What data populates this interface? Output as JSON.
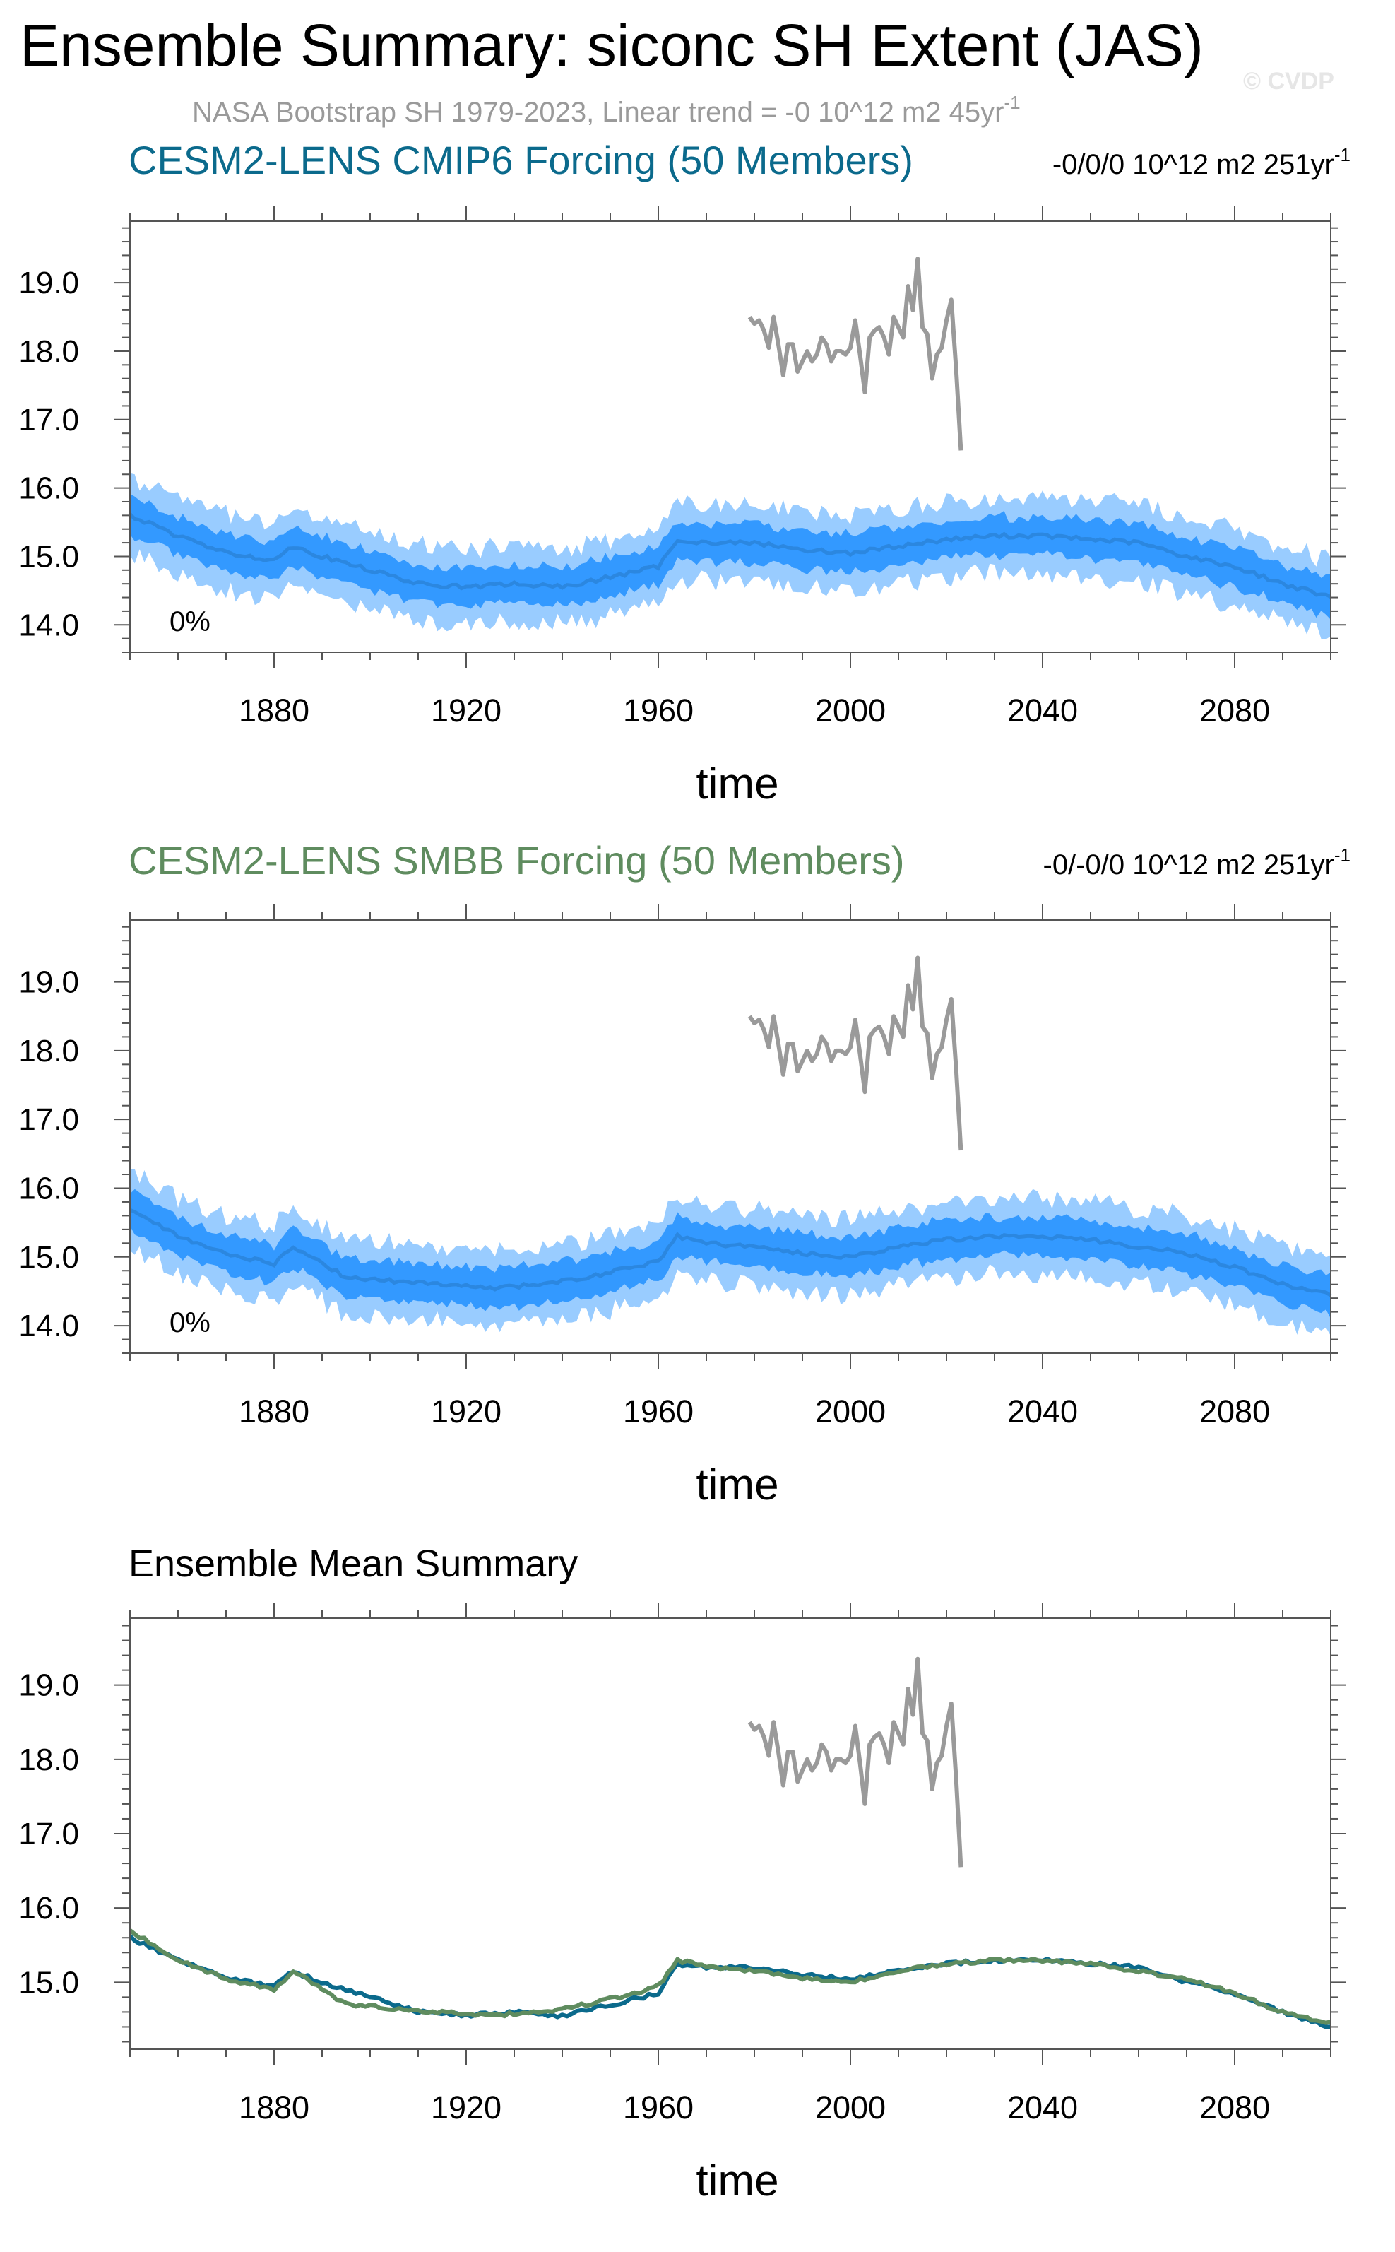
{
  "figure": {
    "title": "Ensemble Summary: siconc SH Extent (JAS)",
    "subtitle_main": "NASA Bootstrap SH 1979-2023, Linear trend = -0 10^12 m2 45yr",
    "subtitle_sup": "-1",
    "copyright": "© CVDP",
    "colors": {
      "obs": "#9a9a9a",
      "band_outer": "#99ccff",
      "band_inner": "#3399ff",
      "mean_line": "#2b87e0",
      "cmip6": "#0b6a8c",
      "smbb": "#5f8c5f"
    }
  },
  "chart_data": [
    {
      "type": "area",
      "title": "CESM2-LENS CMIP6 Forcing (50 Members)",
      "trend_main": "-0/0/0 10^12 m2 251yr",
      "trend_sup": "-1",
      "percent_label": "0%",
      "xlabel": "time",
      "ylabel": "",
      "xlim": [
        1850,
        2100
      ],
      "ylim": [
        13.6,
        19.9
      ],
      "xticks": [
        "1880",
        "1920",
        "1960",
        "2000",
        "2040",
        "2080"
      ],
      "yticks": [
        "14.0",
        "15.0",
        "16.0",
        "17.0",
        "18.0",
        "19.0"
      ],
      "ensemble_anchors": {
        "year": [
          1850,
          1860,
          1870,
          1880,
          1884,
          1890,
          1900,
          1910,
          1920,
          1930,
          1940,
          1950,
          1960,
          1964,
          1970,
          1980,
          1990,
          2000,
          2010,
          2020,
          2030,
          2040,
          2050,
          2060,
          2070,
          2080,
          2090,
          2100
        ],
        "mean": [
          15.6,
          15.3,
          15.05,
          14.95,
          15.15,
          15.0,
          14.8,
          14.6,
          14.55,
          14.6,
          14.55,
          14.7,
          14.85,
          15.25,
          15.2,
          15.2,
          15.1,
          15.05,
          15.15,
          15.25,
          15.3,
          15.3,
          15.25,
          15.2,
          15.0,
          14.85,
          14.6,
          14.4
        ],
        "inner_half_width": 0.28,
        "outer_half_width": 0.55
      },
      "observations": {
        "label": "NASA Bootstrap SH 1979-2023",
        "years": [
          1979,
          1980,
          1981,
          1982,
          1983,
          1984,
          1985,
          1986,
          1987,
          1988,
          1989,
          1990,
          1991,
          1992,
          1993,
          1994,
          1995,
          1996,
          1997,
          1998,
          1999,
          2000,
          2001,
          2002,
          2003,
          2004,
          2005,
          2006,
          2007,
          2008,
          2009,
          2010,
          2011,
          2012,
          2013,
          2014,
          2015,
          2016,
          2017,
          2018,
          2019,
          2020,
          2021,
          2022,
          2023
        ],
        "values": [
          18.5,
          18.4,
          18.45,
          18.3,
          18.05,
          18.5,
          18.1,
          17.65,
          18.1,
          18.1,
          17.7,
          17.85,
          18.0,
          17.85,
          17.95,
          18.2,
          18.1,
          17.85,
          18.0,
          18.0,
          17.95,
          18.05,
          18.45,
          17.95,
          17.4,
          18.2,
          18.3,
          18.35,
          18.2,
          17.95,
          18.5,
          18.35,
          18.2,
          18.95,
          18.6,
          19.35,
          18.35,
          18.25,
          17.6,
          17.95,
          18.05,
          18.45,
          18.75,
          17.75,
          16.55
        ]
      }
    },
    {
      "type": "area",
      "title": "CESM2-LENS SMBB Forcing (50 Members)",
      "trend_main": "-0/-0/0 10^12 m2 251yr",
      "trend_sup": "-1",
      "percent_label": "0%",
      "xlabel": "time",
      "ylabel": "",
      "xlim": [
        1850,
        2100
      ],
      "ylim": [
        13.6,
        19.9
      ],
      "xticks": [
        "1880",
        "1920",
        "1960",
        "2000",
        "2040",
        "2080"
      ],
      "yticks": [
        "14.0",
        "15.0",
        "16.0",
        "17.0",
        "18.0",
        "19.0"
      ],
      "ensemble_anchors": {
        "year": [
          1850,
          1860,
          1870,
          1880,
          1884,
          1888,
          1895,
          1905,
          1915,
          1925,
          1935,
          1945,
          1955,
          1960,
          1964,
          1970,
          1980,
          1990,
          2000,
          2010,
          2020,
          2030,
          2040,
          2050,
          2060,
          2070,
          2080,
          2090,
          2100
        ],
        "mean": [
          15.7,
          15.3,
          15.05,
          14.9,
          15.15,
          15.0,
          14.7,
          14.65,
          14.6,
          14.55,
          14.6,
          14.7,
          14.85,
          14.95,
          15.3,
          15.2,
          15.15,
          15.05,
          15.0,
          15.15,
          15.25,
          15.3,
          15.3,
          15.25,
          15.15,
          15.05,
          14.85,
          14.6,
          14.45
        ],
        "inner_half_width": 0.28,
        "outer_half_width": 0.55
      },
      "observations": {
        "label": "NASA Bootstrap SH 1979-2023",
        "years": [
          1979,
          1980,
          1981,
          1982,
          1983,
          1984,
          1985,
          1986,
          1987,
          1988,
          1989,
          1990,
          1991,
          1992,
          1993,
          1994,
          1995,
          1996,
          1997,
          1998,
          1999,
          2000,
          2001,
          2002,
          2003,
          2004,
          2005,
          2006,
          2007,
          2008,
          2009,
          2010,
          2011,
          2012,
          2013,
          2014,
          2015,
          2016,
          2017,
          2018,
          2019,
          2020,
          2021,
          2022,
          2023
        ],
        "values": [
          18.5,
          18.4,
          18.45,
          18.3,
          18.05,
          18.5,
          18.1,
          17.65,
          18.1,
          18.1,
          17.7,
          17.85,
          18.0,
          17.85,
          17.95,
          18.2,
          18.1,
          17.85,
          18.0,
          18.0,
          17.95,
          18.05,
          18.45,
          17.95,
          17.4,
          18.2,
          18.3,
          18.35,
          18.2,
          17.95,
          18.5,
          18.35,
          18.2,
          18.95,
          18.6,
          19.35,
          18.35,
          18.25,
          17.6,
          17.95,
          18.05,
          18.45,
          18.75,
          17.75,
          16.55
        ]
      }
    },
    {
      "type": "line",
      "title": "Ensemble Mean Summary",
      "xlabel": "time",
      "ylabel": "",
      "xlim": [
        1850,
        2100
      ],
      "ylim": [
        14.1,
        19.9
      ],
      "xticks": [
        "1880",
        "1920",
        "1960",
        "2000",
        "2040",
        "2080"
      ],
      "yticks": [
        "15.0",
        "16.0",
        "17.0",
        "18.0",
        "19.0"
      ],
      "series": [
        {
          "name": "CESM2-LENS CMIP6 Forcing (50 Members)",
          "year": [
            1850,
            1860,
            1870,
            1880,
            1884,
            1890,
            1900,
            1910,
            1920,
            1930,
            1940,
            1950,
            1960,
            1964,
            1970,
            1980,
            1990,
            2000,
            2010,
            2020,
            2030,
            2040,
            2050,
            2060,
            2070,
            2080,
            2090,
            2100
          ],
          "values": [
            15.6,
            15.3,
            15.05,
            14.95,
            15.15,
            15.0,
            14.8,
            14.6,
            14.55,
            14.6,
            14.55,
            14.7,
            14.85,
            15.25,
            15.2,
            15.2,
            15.1,
            15.05,
            15.15,
            15.25,
            15.3,
            15.3,
            15.25,
            15.2,
            15.0,
            14.85,
            14.6,
            14.4
          ]
        },
        {
          "name": "CESM2-LENS SMBB Forcing (50 Members)",
          "year": [
            1850,
            1860,
            1870,
            1880,
            1884,
            1888,
            1895,
            1905,
            1915,
            1925,
            1935,
            1945,
            1955,
            1960,
            1964,
            1970,
            1980,
            1990,
            2000,
            2010,
            2020,
            2030,
            2040,
            2050,
            2060,
            2070,
            2080,
            2090,
            2100
          ],
          "values": [
            15.7,
            15.3,
            15.05,
            14.9,
            15.15,
            15.0,
            14.7,
            14.65,
            14.6,
            14.55,
            14.6,
            14.7,
            14.85,
            14.95,
            15.3,
            15.2,
            15.15,
            15.05,
            15.0,
            15.15,
            15.25,
            15.3,
            15.3,
            15.25,
            15.15,
            15.05,
            14.85,
            14.6,
            14.45
          ]
        },
        {
          "name": "NASA Bootstrap SH 1979-2023",
          "year": [
            1979,
            1980,
            1981,
            1982,
            1983,
            1984,
            1985,
            1986,
            1987,
            1988,
            1989,
            1990,
            1991,
            1992,
            1993,
            1994,
            1995,
            1996,
            1997,
            1998,
            1999,
            2000,
            2001,
            2002,
            2003,
            2004,
            2005,
            2006,
            2007,
            2008,
            2009,
            2010,
            2011,
            2012,
            2013,
            2014,
            2015,
            2016,
            2017,
            2018,
            2019,
            2020,
            2021,
            2022,
            2023
          ],
          "values": [
            18.5,
            18.4,
            18.45,
            18.3,
            18.05,
            18.5,
            18.1,
            17.65,
            18.1,
            18.1,
            17.7,
            17.85,
            18.0,
            17.85,
            17.95,
            18.2,
            18.1,
            17.85,
            18.0,
            18.0,
            17.95,
            18.05,
            18.45,
            17.95,
            17.4,
            18.2,
            18.3,
            18.35,
            18.2,
            17.95,
            18.5,
            18.35,
            18.2,
            18.95,
            18.6,
            19.35,
            18.35,
            18.25,
            17.6,
            17.95,
            18.05,
            18.45,
            18.75,
            17.75,
            16.55
          ]
        }
      ]
    }
  ]
}
